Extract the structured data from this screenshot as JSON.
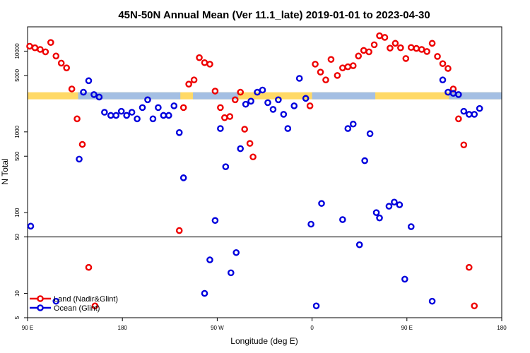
{
  "chart_data": {
    "type": "scatter",
    "title": "45N-50N Annual Mean (Ver 11.1_late)   2019-01-01 to 2023-04-30",
    "xlabel": "Longitude (deg E)",
    "ylabel": "N Total",
    "x_unit_note": "x values are degrees of longitude measured eastward starting at 90 E (0 = 90 E, 450 = 180)",
    "xlim": [
      0,
      450
    ],
    "x_ticks": [
      {
        "pos": 0,
        "label": "90 E"
      },
      {
        "pos": 90,
        "label": "180"
      },
      {
        "pos": 180,
        "label": "90 W"
      },
      {
        "pos": 270,
        "label": "0"
      },
      {
        "pos": 360,
        "label": "90 E"
      },
      {
        "pos": 450,
        "label": "180"
      }
    ],
    "y_scale": "log",
    "ylim": [
      5,
      20000
    ],
    "y_ticks": [
      {
        "value": 10000,
        "label": "10000"
      },
      {
        "value": 5000,
        "label": "5000"
      },
      {
        "value": 1000,
        "label": "1000"
      },
      {
        "value": 500,
        "label": "500"
      },
      {
        "value": 100,
        "label": "100"
      },
      {
        "value": 50,
        "label": "50"
      },
      {
        "value": 10,
        "label": "10"
      },
      {
        "value": 5,
        "label": "5"
      }
    ],
    "divider_y": 50,
    "legend": {
      "position": "bottom-left"
    },
    "band": {
      "y": 2800,
      "land_color": "#ffd966",
      "ocean_color": "#a4bfe3",
      "ocean_ranges": [
        [
          48,
          145
        ],
        [
          157,
          200
        ],
        [
          270,
          330
        ],
        [
          400,
          450
        ]
      ]
    },
    "series": [
      {
        "name": "Land (Nadir&Glint)",
        "color": "#ee0000",
        "points": [
          [
            2,
            11500
          ],
          [
            7,
            11000
          ],
          [
            12,
            10500
          ],
          [
            17,
            9800
          ],
          [
            22,
            12800
          ],
          [
            27,
            8700
          ],
          [
            32,
            7100
          ],
          [
            37,
            6200
          ],
          [
            42,
            3400
          ],
          [
            47,
            1450
          ],
          [
            52,
            700
          ],
          [
            58,
            21
          ],
          [
            64,
            7
          ],
          [
            144,
            60
          ],
          [
            148,
            2000
          ],
          [
            153,
            3900
          ],
          [
            158,
            4400
          ],
          [
            163,
            8300
          ],
          [
            168,
            7200
          ],
          [
            173,
            6900
          ],
          [
            178,
            3200
          ],
          [
            183,
            2000
          ],
          [
            187,
            1500
          ],
          [
            192,
            1550
          ],
          [
            197,
            2500
          ],
          [
            202,
            3100
          ],
          [
            206,
            1080
          ],
          [
            211,
            720
          ],
          [
            214,
            490
          ],
          [
            268,
            2100
          ],
          [
            273,
            6900
          ],
          [
            278,
            5500
          ],
          [
            283,
            4400
          ],
          [
            288,
            7900
          ],
          [
            294,
            5000
          ],
          [
            299,
            6200
          ],
          [
            304,
            6400
          ],
          [
            309,
            6600
          ],
          [
            314,
            8700
          ],
          [
            319,
            10200
          ],
          [
            324,
            9800
          ],
          [
            329,
            12000
          ],
          [
            334,
            15500
          ],
          [
            339,
            14800
          ],
          [
            344,
            10900
          ],
          [
            349,
            12500
          ],
          [
            354,
            11000
          ],
          [
            359,
            8100
          ],
          [
            364,
            11100
          ],
          [
            369,
            10800
          ],
          [
            374,
            10500
          ],
          [
            379,
            9900
          ],
          [
            384,
            12500
          ],
          [
            389,
            8600
          ],
          [
            394,
            7000
          ],
          [
            399,
            6100
          ],
          [
            404,
            3400
          ],
          [
            409,
            1450
          ],
          [
            414,
            690
          ],
          [
            419,
            21
          ],
          [
            424,
            7
          ]
        ]
      },
      {
        "name": "Ocean (Glint)",
        "color": "#0000dd",
        "points": [
          [
            3,
            68
          ],
          [
            27,
            8
          ],
          [
            49,
            460
          ],
          [
            53,
            3100
          ],
          [
            58,
            4300
          ],
          [
            63,
            2900
          ],
          [
            68,
            2700
          ],
          [
            73,
            1750
          ],
          [
            79,
            1600
          ],
          [
            84,
            1600
          ],
          [
            89,
            1800
          ],
          [
            94,
            1600
          ],
          [
            99,
            1750
          ],
          [
            104,
            1450
          ],
          [
            109,
            2000
          ],
          [
            114,
            2500
          ],
          [
            119,
            1450
          ],
          [
            124,
            2000
          ],
          [
            129,
            1600
          ],
          [
            134,
            1600
          ],
          [
            139,
            2100
          ],
          [
            144,
            980
          ],
          [
            148,
            270
          ],
          [
            168,
            10
          ],
          [
            173,
            26
          ],
          [
            178,
            80
          ],
          [
            183,
            1100
          ],
          [
            188,
            370
          ],
          [
            193,
            18
          ],
          [
            198,
            32
          ],
          [
            202,
            620
          ],
          [
            207,
            2200
          ],
          [
            212,
            2400
          ],
          [
            218,
            3100
          ],
          [
            223,
            3300
          ],
          [
            228,
            2300
          ],
          [
            233,
            1900
          ],
          [
            238,
            2500
          ],
          [
            243,
            1650
          ],
          [
            247,
            1100
          ],
          [
            253,
            2100
          ],
          [
            258,
            4600
          ],
          [
            264,
            2600
          ],
          [
            269,
            72
          ],
          [
            274,
            7
          ],
          [
            279,
            130
          ],
          [
            299,
            82
          ],
          [
            304,
            1100
          ],
          [
            309,
            1250
          ],
          [
            315,
            40
          ],
          [
            320,
            440
          ],
          [
            325,
            950
          ],
          [
            331,
            100
          ],
          [
            334,
            86
          ],
          [
            343,
            120
          ],
          [
            348,
            135
          ],
          [
            353,
            125
          ],
          [
            358,
            15
          ],
          [
            364,
            67
          ],
          [
            384,
            8
          ],
          [
            394,
            4400
          ],
          [
            399,
            3100
          ],
          [
            404,
            3000
          ],
          [
            409,
            2900
          ],
          [
            414,
            1800
          ],
          [
            419,
            1650
          ],
          [
            424,
            1650
          ],
          [
            429,
            1950
          ]
        ]
      }
    ]
  }
}
